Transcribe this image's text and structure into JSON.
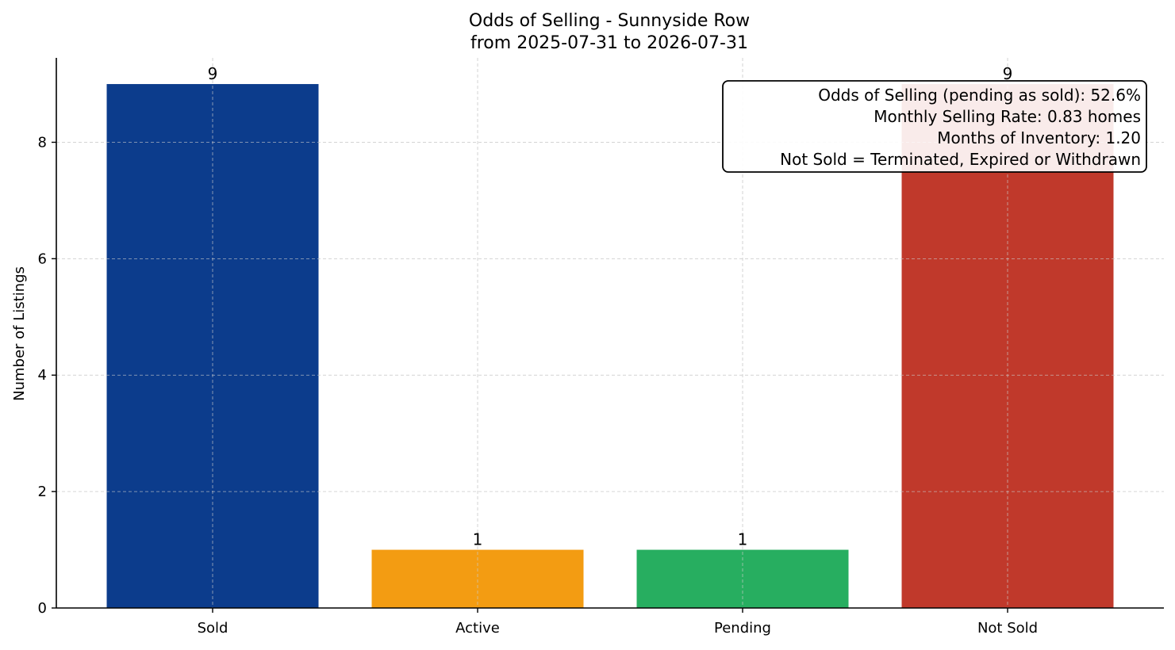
{
  "chart_data": {
    "type": "bar",
    "title": "Odds of Selling - Sunnyside Row",
    "subtitle": "from 2025-07-31 to 2026-07-31",
    "xlabel": "",
    "ylabel": "Number of Listings",
    "categories": [
      "Sold",
      "Active",
      "Pending",
      "Not Sold"
    ],
    "values": [
      9,
      1,
      1,
      9
    ],
    "colors": [
      "#0c3c8c",
      "#f39c12",
      "#27ae60",
      "#c0392b"
    ],
    "ylim": [
      0,
      9.45
    ],
    "yticks": [
      0,
      2,
      4,
      6,
      8
    ],
    "grid": true,
    "annotation_box": {
      "placement": "top-right",
      "lines": [
        "Odds of Selling (pending as sold): 52.6%",
        "Monthly Selling Rate: 0.83 homes",
        "Months of Inventory: 1.20",
        "Not Sold = Terminated, Expired or Withdrawn"
      ]
    }
  }
}
